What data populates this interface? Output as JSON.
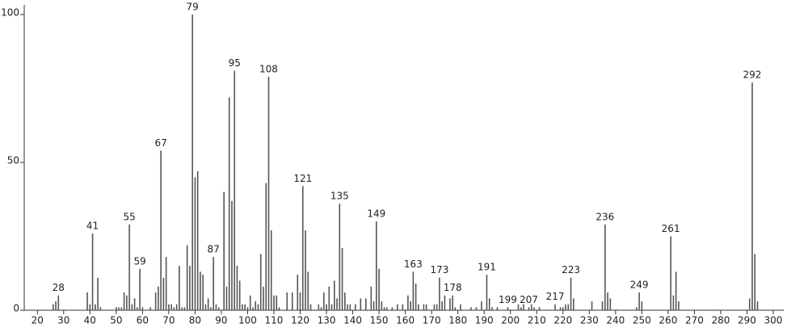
{
  "chart_data": {
    "type": "stick",
    "x": [
      26,
      27,
      28,
      39,
      40,
      41,
      42,
      43,
      44,
      50,
      51,
      52,
      53,
      54,
      55,
      56,
      57,
      58,
      59,
      60,
      63,
      65,
      66,
      67,
      68,
      69,
      70,
      71,
      72,
      73,
      74,
      75,
      76,
      77,
      78,
      79,
      80,
      81,
      82,
      83,
      84,
      85,
      86,
      87,
      88,
      89,
      91,
      92,
      93,
      94,
      95,
      96,
      97,
      98,
      99,
      100,
      101,
      102,
      103,
      104,
      105,
      106,
      107,
      108,
      109,
      110,
      111,
      112,
      115,
      117,
      119,
      120,
      121,
      122,
      123,
      124,
      127,
      128,
      129,
      130,
      131,
      132,
      133,
      134,
      135,
      136,
      137,
      138,
      139,
      141,
      143,
      145,
      147,
      148,
      149,
      150,
      151,
      152,
      153,
      155,
      157,
      159,
      161,
      162,
      163,
      164,
      165,
      167,
      168,
      171,
      172,
      173,
      174,
      175,
      177,
      178,
      179,
      181,
      185,
      187,
      189,
      191,
      192,
      193,
      195,
      199,
      203,
      204,
      205,
      207,
      208,
      209,
      211,
      217,
      219,
      220,
      221,
      222,
      223,
      224,
      231,
      235,
      236,
      237,
      238,
      248,
      249,
      250,
      261,
      262,
      263,
      264,
      291,
      292,
      293,
      294
    ],
    "values": [
      2,
      3,
      5,
      6,
      2,
      26,
      2,
      11,
      1,
      1,
      1,
      1,
      6,
      5,
      29,
      2,
      4,
      1,
      14,
      1,
      1,
      6,
      8,
      54,
      11,
      18,
      2,
      2,
      1,
      2,
      15,
      1,
      1,
      22,
      15,
      100,
      45,
      47,
      13,
      12,
      2,
      4,
      1,
      18,
      2,
      1,
      40,
      8,
      72,
      37,
      81,
      15,
      10,
      2,
      2,
      1,
      5,
      1,
      3,
      2,
      19,
      8,
      43,
      79,
      27,
      5,
      5,
      1,
      6,
      6,
      12,
      6,
      42,
      27,
      13,
      2,
      2,
      1,
      6,
      2,
      8,
      2,
      10,
      4,
      36,
      21,
      6,
      2,
      2,
      2,
      4,
      4,
      8,
      3,
      30,
      14,
      3,
      1,
      1,
      1,
      2,
      2,
      5,
      3,
      13,
      9,
      2,
      2,
      2,
      2,
      2,
      11,
      3,
      5,
      4,
      5,
      1,
      2,
      1,
      1,
      3,
      12,
      4,
      1,
      1,
      1,
      2,
      1,
      2,
      1,
      2,
      1,
      1,
      2,
      1,
      1,
      2,
      2,
      11,
      4,
      3,
      3,
      29,
      6,
      4,
      1,
      6,
      3,
      25,
      5,
      13,
      3,
      4,
      77,
      19,
      3
    ],
    "peak_labels": [
      28,
      41,
      55,
      59,
      67,
      79,
      87,
      95,
      108,
      121,
      135,
      149,
      163,
      173,
      178,
      191,
      199,
      207,
      217,
      223,
      236,
      249,
      261,
      292
    ],
    "color": "#555555",
    "xlim": [
      15,
      304
    ],
    "xticks": [
      20,
      30,
      40,
      50,
      60,
      70,
      80,
      90,
      100,
      110,
      120,
      130,
      140,
      150,
      160,
      170,
      180,
      190,
      200,
      210,
      220,
      230,
      240,
      250,
      260,
      270,
      280,
      290,
      300
    ],
    "ylim": [
      0,
      100
    ],
    "yticks": [
      0,
      50,
      100
    ]
  }
}
